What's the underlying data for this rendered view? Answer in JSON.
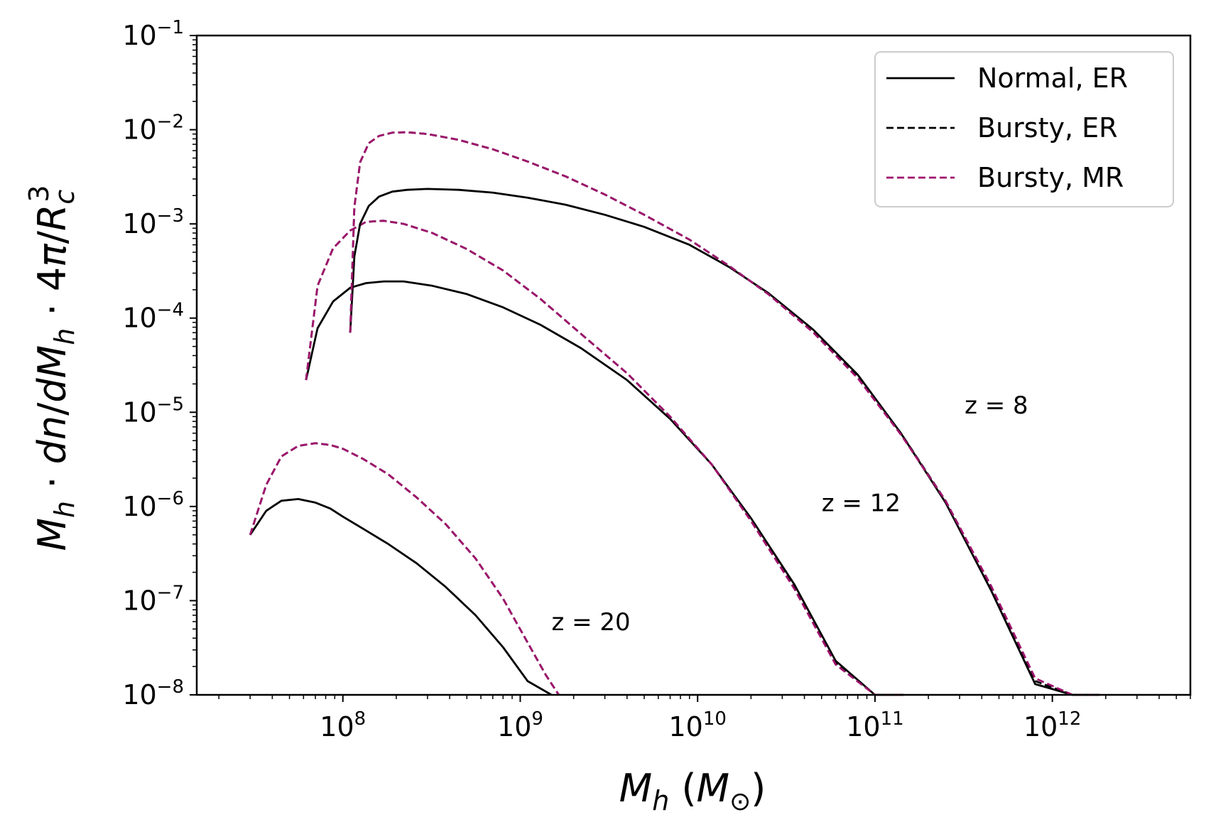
{
  "chart_data": {
    "type": "line",
    "title": "",
    "xlabel": "M_h (M⊙)",
    "ylabel": "M_h · dn/dM_h · 4π/R_c^3",
    "xscale": "log",
    "yscale": "log",
    "xlim": [
      15000000,
      6000000000000
    ],
    "ylim": [
      1e-08,
      0.1
    ],
    "x_tick_exponents": [
      "8",
      "9",
      "10",
      "11",
      "12"
    ],
    "y_tick_exponents": [
      "−8",
      "−7",
      "−6",
      "−5",
      "−4",
      "−3",
      "−2",
      "−1"
    ],
    "tick_base": "10",
    "legend": {
      "position": "top-right",
      "entries": [
        {
          "label": "Normal, ER",
          "color": "#000000",
          "style": "solid"
        },
        {
          "label": "Bursty, ER",
          "color": "#000000",
          "style": "dashed"
        },
        {
          "label": "Bursty, MR",
          "color": "#a0146e",
          "style": "dashed"
        }
      ]
    },
    "annotations": [
      {
        "text": "z = 20",
        "x": 1500000000,
        "y": 6e-08
      },
      {
        "text": "z = 12",
        "x": 50000000000,
        "y": 1.1e-06
      },
      {
        "text": "z = 8",
        "x": 320000000000,
        "y": 1.2e-05
      }
    ],
    "series": [
      {
        "name": "Normal, ER",
        "redshift": "z = 20",
        "color": "#000000",
        "style": "solid",
        "x": [
          30000000,
          37000000,
          45000000,
          56000000,
          70000000,
          85000000,
          100000000,
          130000000,
          180000000,
          260000000,
          380000000,
          560000000,
          800000000,
          1100000000,
          1500000000
        ],
        "y": [
          5e-07,
          9e-07,
          1.15e-06,
          1.2e-06,
          1.1e-06,
          9.5e-07,
          7.8e-07,
          5.8e-07,
          4e-07,
          2.5e-07,
          1.4e-07,
          7e-08,
          3.2e-08,
          1.4e-08,
          1e-08
        ]
      },
      {
        "name": "Bursty, ER",
        "redshift": "z = 20",
        "color": "#000000",
        "style": "dashed",
        "x": [
          30000000,
          37000000,
          45000000,
          56000000,
          70000000,
          85000000,
          100000000,
          130000000,
          180000000,
          260000000,
          380000000,
          560000000,
          800000000,
          1100000000,
          1400000000,
          1650000000
        ],
        "y": [
          5e-07,
          1.7e-06,
          3.4e-06,
          4.4e-06,
          4.7e-06,
          4.5e-06,
          4.1e-06,
          3.2e-06,
          2.2e-06,
          1.25e-06,
          6.5e-07,
          2.8e-07,
          1.05e-07,
          3.6e-08,
          1.6e-08,
          1e-08
        ]
      },
      {
        "name": "Bursty, MR",
        "redshift": "z = 20",
        "color": "#a0146e",
        "style": "dashed",
        "x": [
          30000000,
          37000000,
          45000000,
          56000000,
          70000000,
          85000000,
          100000000,
          130000000,
          180000000,
          260000000,
          380000000,
          560000000,
          800000000,
          1100000000,
          1400000000,
          1650000000
        ],
        "y": [
          5e-07,
          1.7e-06,
          3.4e-06,
          4.4e-06,
          4.7e-06,
          4.5e-06,
          4.1e-06,
          3.2e-06,
          2.2e-06,
          1.25e-06,
          6.5e-07,
          2.8e-07,
          1.05e-07,
          3.6e-08,
          1.6e-08,
          1e-08
        ]
      },
      {
        "name": "Normal, ER",
        "redshift": "z = 12",
        "color": "#000000",
        "style": "solid",
        "x": [
          62000000,
          72000000,
          88000000,
          110000000,
          135000000,
          170000000,
          220000000,
          320000000,
          500000000,
          800000000,
          1300000000,
          2200000000,
          4000000000,
          7000000000,
          12000000000,
          20000000000,
          35000000000,
          60000000000,
          100000000000,
          145000000000
        ],
        "y": [
          2.2e-05,
          7.8e-05,
          0.00015,
          0.00021,
          0.000235,
          0.000245,
          0.000245,
          0.00022,
          0.00018,
          0.00013,
          8.5e-05,
          4.8e-05,
          2.2e-05,
          8.5e-06,
          2.8e-06,
          7.5e-07,
          1.5e-07,
          2.3e-08,
          1e-08,
          1e-08
        ]
      },
      {
        "name": "Bursty, ER",
        "redshift": "z = 12",
        "color": "#000000",
        "style": "dashed",
        "x": [
          62000000,
          72000000,
          88000000,
          110000000,
          135000000,
          170000000,
          220000000,
          320000000,
          500000000,
          800000000,
          1300000000,
          2200000000,
          4000000000,
          7000000000,
          12000000000,
          20000000000,
          35000000000,
          60000000000,
          100000000000,
          145000000000
        ],
        "y": [
          2.2e-05,
          0.00022,
          0.00055,
          0.00085,
          0.00105,
          0.00108,
          0.001,
          0.0008,
          0.00054,
          0.00032,
          0.00016,
          6.8e-05,
          2.6e-05,
          9e-06,
          2.8e-06,
          7.2e-07,
          1.4e-07,
          2.2e-08,
          1e-08,
          1e-08
        ]
      },
      {
        "name": "Bursty, MR",
        "redshift": "z = 12",
        "color": "#a0146e",
        "style": "dashed",
        "x": [
          62000000,
          72000000,
          88000000,
          110000000,
          135000000,
          170000000,
          220000000,
          320000000,
          500000000,
          800000000,
          1300000000,
          2200000000,
          4000000000,
          7000000000,
          12000000000,
          20000000000,
          35000000000,
          60000000000,
          100000000000,
          145000000000
        ],
        "y": [
          2.2e-05,
          0.00022,
          0.00055,
          0.00085,
          0.00105,
          0.00108,
          0.001,
          0.0008,
          0.00054,
          0.00032,
          0.00016,
          6.8e-05,
          2.6e-05,
          9e-06,
          2.8e-06,
          7e-07,
          1.35e-07,
          2.1e-08,
          1e-08,
          1e-08
        ]
      },
      {
        "name": "Normal, ER",
        "redshift": "z = 8",
        "color": "#000000",
        "style": "solid",
        "x": [
          110000000,
          116000000,
          125000000,
          140000000,
          160000000,
          190000000,
          230000000,
          300000000,
          450000000,
          700000000,
          1100000000,
          1800000000,
          3000000000,
          5000000000,
          9000000000,
          15000000000,
          25000000000,
          45000000000,
          80000000000,
          140000000000,
          250000000000,
          450000000000,
          800000000000,
          1300000000000,
          1800000000000
        ],
        "y": [
          7e-05,
          0.00045,
          0.001,
          0.00155,
          0.00195,
          0.0022,
          0.0023,
          0.00235,
          0.0023,
          0.00215,
          0.0019,
          0.0016,
          0.00125,
          0.00093,
          0.0006,
          0.00035,
          0.000185,
          7.5e-05,
          2.5e-05,
          6e-06,
          1.1e-06,
          1.3e-07,
          1.3e-08,
          1e-08,
          1e-08
        ]
      },
      {
        "name": "Bursty, ER",
        "redshift": "z = 8",
        "color": "#000000",
        "style": "dashed",
        "x": [
          110000000,
          116000000,
          125000000,
          140000000,
          160000000,
          190000000,
          230000000,
          300000000,
          450000000,
          700000000,
          1100000000,
          1800000000,
          3000000000,
          5000000000,
          9000000000,
          15000000000,
          25000000000,
          45000000000,
          80000000000,
          140000000000,
          250000000000,
          450000000000,
          800000000000,
          1300000000000,
          1850000000000
        ],
        "y": [
          7e-05,
          0.0015,
          0.0045,
          0.0072,
          0.0086,
          0.0093,
          0.0094,
          0.009,
          0.0078,
          0.0062,
          0.0046,
          0.0032,
          0.00205,
          0.00125,
          0.00068,
          0.00036,
          0.00018,
          7.2e-05,
          2.4e-05,
          6e-06,
          1.15e-06,
          1.4e-07,
          1.4e-08,
          1e-08,
          1e-08
        ]
      },
      {
        "name": "Bursty, MR",
        "redshift": "z = 8",
        "color": "#a0146e",
        "style": "dashed",
        "x": [
          110000000,
          116000000,
          125000000,
          140000000,
          160000000,
          190000000,
          230000000,
          300000000,
          450000000,
          700000000,
          1100000000,
          1800000000,
          3000000000,
          5000000000,
          9000000000,
          15000000000,
          25000000000,
          45000000000,
          80000000000,
          140000000000,
          250000000000,
          450000000000,
          800000000000,
          1300000000000,
          1850000000000
        ],
        "y": [
          7e-05,
          0.0015,
          0.0045,
          0.0072,
          0.0086,
          0.0093,
          0.0094,
          0.009,
          0.0078,
          0.0062,
          0.0046,
          0.0032,
          0.00205,
          0.00125,
          0.00068,
          0.00036,
          0.00018,
          7e-05,
          2.3e-05,
          5.8e-06,
          1.15e-06,
          1.45e-07,
          1.5e-08,
          1e-08,
          1e-08
        ]
      }
    ]
  }
}
